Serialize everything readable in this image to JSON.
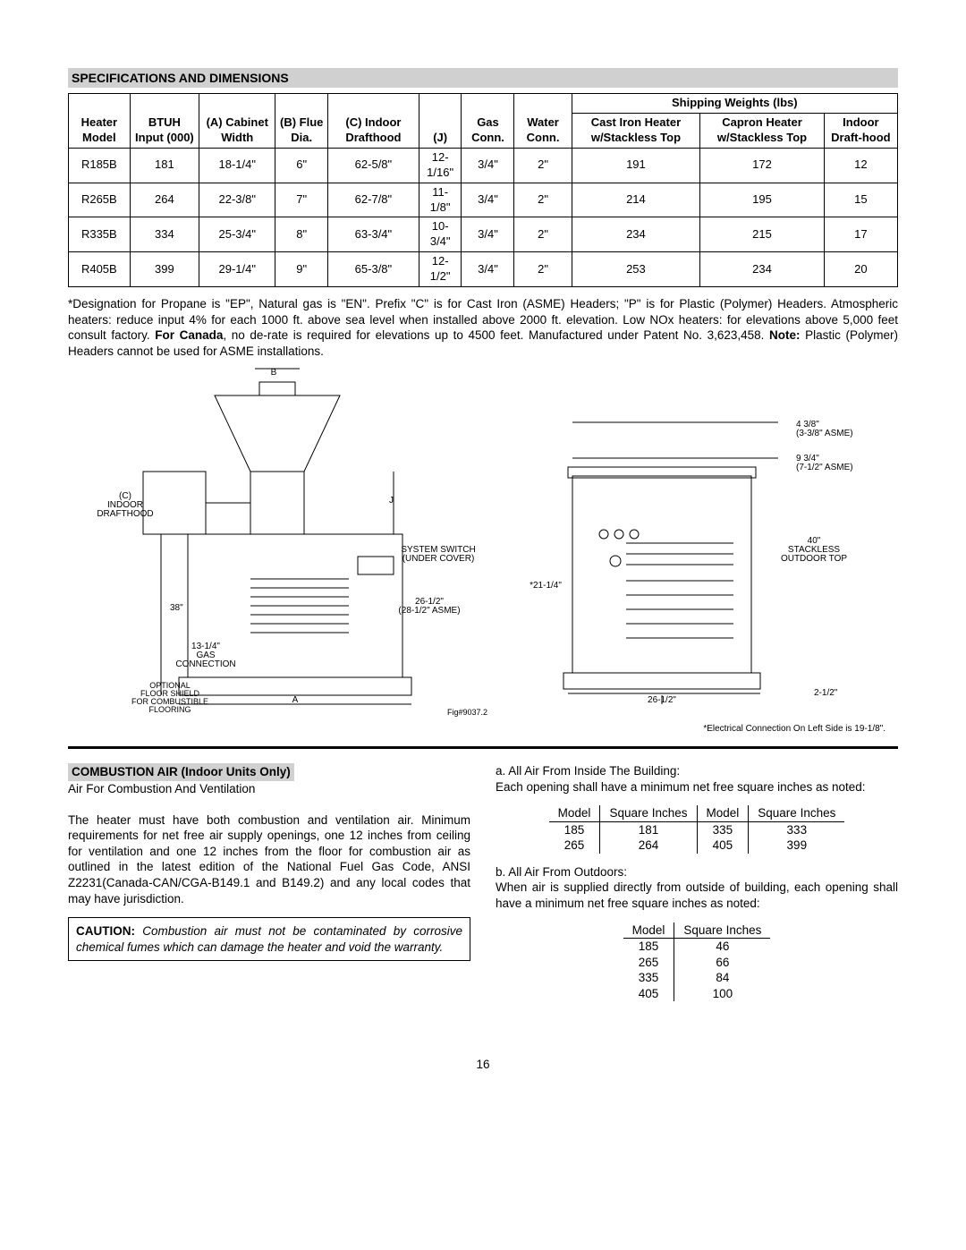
{
  "section_title": "SPECIFICATIONS AND DIMENSIONS",
  "spec_table": {
    "shipping_header": "Shipping Weights (lbs)",
    "headers": {
      "model": "Heater Model",
      "btuh": "BTUH Input (000)",
      "a": "(A) Cabinet Width",
      "b": "(B) Flue Dia.",
      "c": "(C) Indoor Drafthood",
      "j": "(J)",
      "gas": "Gas Conn.",
      "water": "Water Conn.",
      "ship1": "Cast Iron Heater w/Stackless Top",
      "ship2": "Capron Heater w/Stackless Top",
      "ship3": "Indoor Draft-hood"
    },
    "rows": [
      {
        "model": "R185B",
        "btuh": "181",
        "a": "18-1/4\"",
        "b": "6\"",
        "c": "62-5/8\"",
        "j": "12-1/16\"",
        "gas": "3/4\"",
        "water": "2\"",
        "s1": "191",
        "s2": "172",
        "s3": "12"
      },
      {
        "model": "R265B",
        "btuh": "264",
        "a": "22-3/8\"",
        "b": "7\"",
        "c": "62-7/8\"",
        "j": "11-1/8\"",
        "gas": "3/4\"",
        "water": "2\"",
        "s1": "214",
        "s2": "195",
        "s3": "15"
      },
      {
        "model": "R335B",
        "btuh": "334",
        "a": "25-3/4\"",
        "b": "8\"",
        "c": "63-3/4\"",
        "j": "10-3/4\"",
        "gas": "3/4\"",
        "water": "2\"",
        "s1": "234",
        "s2": "215",
        "s3": "17"
      },
      {
        "model": "R405B",
        "btuh": "399",
        "a": "29-1/4\"",
        "b": "9\"",
        "c": "65-3/8\"",
        "j": "12-1/2\"",
        "gas": "3/4\"",
        "water": "2\"",
        "s1": "253",
        "s2": "234",
        "s3": "20"
      }
    ]
  },
  "footnote_pre": "*Designation for Propane is \"EP\", Natural gas is \"EN\".  Prefix \"C\" is for Cast Iron (ASME) Headers; \"P\" is for Plastic (Polymer) Headers.  Atmospheric heaters: reduce input 4% for each 1000 ft. above sea level when installed above 2000 ft. elevation. Low NOx heaters: for elevations above 5,000 feet consult factory.  ",
  "footnote_bold": "For Canada",
  "footnote_mid": ", no de-rate is required for elevations up to 4500 feet.  Manufactured under Patent No. 3,623,458.  ",
  "footnote_note": "Note:",
  "footnote_post": " Plastic (Polymer) Headers cannot be used for ASME installations.",
  "diagram": {
    "labels": {
      "b_arrow": "B",
      "c_indoor": "(C)\nINDOOR\nDRAFTHOOD",
      "j": "J",
      "sys_switch": "SYSTEM SWITCH\n(UNDER COVER)",
      "h38": "38\"",
      "h26": "26-1/2\"\n(28-1/2\" ASME)",
      "h13": "13-1/4\"\nGAS\nCONNECTION",
      "optional": "OPTIONAL\nFLOOR SHIELD\nFOR COMBUSTIBLE\nFLOORING",
      "a": "A",
      "fig": "Fig#9037.2",
      "d4": "4 3/8\"\n(3-3/8\" ASME)",
      "d9": "9 3/4\"\n(7-1/2\" ASME)",
      "d40": "40\"\nSTACKLESS\nOUTDOOR TOP",
      "d21": "*21-1/4\"",
      "d26b": "26-1/2\"",
      "d2": "2-1/2\"",
      "elec": "*Electrical Connection On Left Side is 19-1/8\"."
    }
  },
  "combustion": {
    "heading": "COMBUSTION AIR (Indoor Units Only)",
    "subtitle": "Air For Combustion And Ventilation",
    "para": "The heater must have both combustion and ventilation air. Minimum requirements for net free air supply openings, one 12 inches from ceiling for ventilation and one 12 inches from the floor for combustion air as outlined in the latest edition of the National Fuel Gas Code, ANSI Z2231(Canada-CAN/CGA-B149.1 and B149.2) and any local codes that may have jurisdiction.",
    "caution_label": "CAUTION:",
    "caution_text": " Combustion air must not be contaminated by corrosive chemical fumes which can damage the heater and void the warranty."
  },
  "right": {
    "a_head": "a.   All Air From Inside The Building:",
    "a_text": "Each opening shall have a minimum net free square inches as noted:",
    "table_a": {
      "h_model": "Model",
      "h_sq": "Square Inches",
      "rows": [
        {
          "m1": "185",
          "s1": "181",
          "m2": "335",
          "s2": "333"
        },
        {
          "m1": "265",
          "s1": "264",
          "m2": "405",
          "s2": "399"
        }
      ]
    },
    "b_head": "b.   All Air From Outdoors:",
    "b_text": "When air is supplied directly from outside of building, each opening shall have a minimum net free square inches as noted:",
    "table_b": {
      "h_model": "Model",
      "h_sq": "Square Inches",
      "rows": [
        {
          "m": "185",
          "s": "46"
        },
        {
          "m": "265",
          "s": "66"
        },
        {
          "m": "335",
          "s": "84"
        },
        {
          "m": "405",
          "s": "100"
        }
      ]
    }
  },
  "page_number": "16"
}
